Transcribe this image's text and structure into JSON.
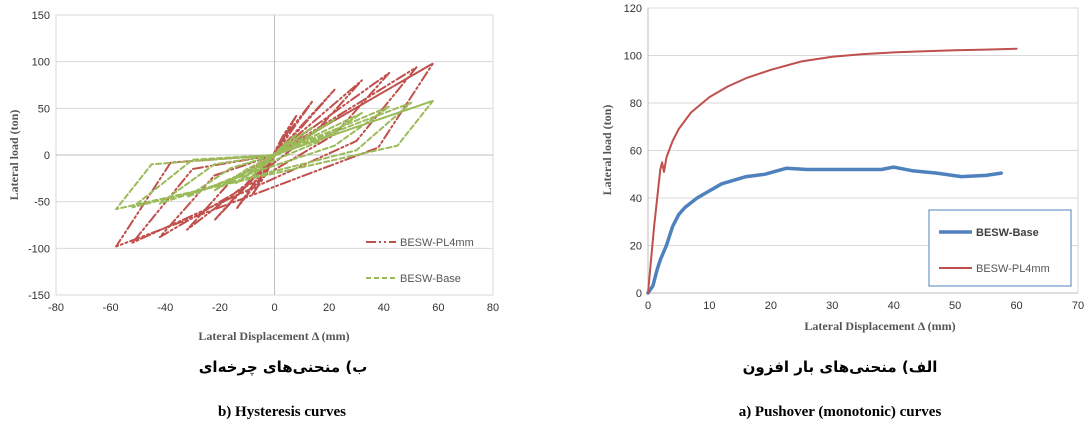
{
  "chart_data": [
    {
      "type": "line",
      "title": "",
      "xlabel": "Lateral Displacement Δ (mm)",
      "ylabel": "Lateral load (ton)",
      "xlim": [
        -80,
        80
      ],
      "ylim": [
        -150,
        150
      ],
      "xticks": [
        "-80",
        "-60",
        "-40",
        "-20",
        "0",
        "20",
        "40",
        "60",
        "80"
      ],
      "yticks": [
        "150",
        "100",
        "50",
        "0",
        "-50",
        "-100",
        "-150"
      ],
      "grid": true,
      "legend_position": "bottom-right",
      "series": [
        {
          "name": "BESW-PL4mm",
          "color": "#c0504d",
          "style": "dash-dot-dot",
          "x": [
            0,
            4,
            0,
            -4,
            0,
            8,
            3,
            -8,
            -3,
            0,
            14,
            6,
            -14,
            -6,
            0,
            22,
            10,
            -22,
            -10,
            0,
            32,
            16,
            -32,
            -16,
            0,
            42,
            22,
            -42,
            -22,
            0,
            52,
            30,
            -52,
            -30,
            0,
            58,
            38,
            -58,
            -38,
            0,
            58
          ],
          "y": [
            0,
            22,
            0,
            -22,
            0,
            42,
            20,
            -42,
            -20,
            0,
            58,
            28,
            -58,
            -28,
            0,
            70,
            30,
            -70,
            -30,
            0,
            80,
            28,
            -80,
            -28,
            0,
            88,
            22,
            -88,
            -22,
            0,
            94,
            15,
            -94,
            -15,
            0,
            98,
            8,
            -98,
            -8,
            0,
            98
          ]
        },
        {
          "name": "BESW-Base",
          "color": "#9bbb59",
          "style": "dashed",
          "x": [
            0,
            4,
            0,
            -4,
            0,
            8,
            3,
            -8,
            -3,
            0,
            14,
            6,
            -14,
            -6,
            0,
            22,
            10,
            -22,
            -10,
            0,
            32,
            16,
            -32,
            -16,
            0,
            42,
            22,
            -42,
            -22,
            0,
            50,
            30,
            -52,
            -30,
            0,
            58,
            45,
            -58,
            -45,
            0,
            58
          ],
          "y": [
            0,
            12,
            0,
            -12,
            0,
            22,
            10,
            -22,
            -10,
            0,
            30,
            14,
            -30,
            -14,
            0,
            38,
            15,
            -38,
            -15,
            0,
            45,
            14,
            -45,
            -14,
            0,
            52,
            10,
            -52,
            -10,
            0,
            56,
            5,
            -56,
            -5,
            0,
            58,
            10,
            -58,
            -10,
            0,
            58
          ]
        }
      ]
    },
    {
      "type": "line",
      "title": "",
      "xlabel": "Lateral Displacement Δ (mm)",
      "ylabel": "Lateral load (ton)",
      "xlim": [
        0,
        70
      ],
      "ylim": [
        0,
        120
      ],
      "xticks": [
        "0",
        "10",
        "20",
        "30",
        "40",
        "50",
        "60",
        "70"
      ],
      "yticks": [
        "120",
        "100",
        "80",
        "60",
        "40",
        "20",
        "0"
      ],
      "grid": true,
      "legend_position": "bottom-right",
      "series": [
        {
          "name": "BESW-Base",
          "color": "#4f81bd",
          "x": [
            0,
            0.8,
            1.5,
            2,
            3,
            4,
            5,
            6,
            8,
            10,
            12,
            16,
            19,
            22.5,
            26,
            30,
            34,
            38,
            40,
            43,
            47,
            51,
            55,
            57.5
          ],
          "y": [
            0,
            3,
            10,
            14,
            20,
            28,
            33,
            36,
            40,
            43,
            46,
            49,
            50,
            52.5,
            52,
            52,
            52,
            52,
            53,
            51.5,
            50.5,
            49,
            49.5,
            50.5
          ]
        },
        {
          "name": "BESW-PL4mm",
          "color": "#c0504d",
          "x": [
            0,
            1,
            2,
            2.3,
            2.6,
            3,
            4,
            5,
            7,
            10,
            13,
            16,
            20,
            25,
            30,
            35,
            40,
            45,
            50,
            55,
            60
          ],
          "y": [
            0,
            28,
            52,
            55,
            51,
            57,
            64,
            69,
            76,
            82.5,
            87,
            90.5,
            94,
            97.5,
            99.5,
            100.6,
            101.3,
            101.8,
            102.2,
            102.5,
            102.8
          ]
        }
      ]
    }
  ],
  "captions": {
    "left_fa": "ب) منحنی‌های چرخه‌ای",
    "left_en": "b) Hysteresis  curves",
    "right_fa": "الف) منحنی‌های بار افزون",
    "right_en": "a) Pushover (monotonic) curves"
  }
}
